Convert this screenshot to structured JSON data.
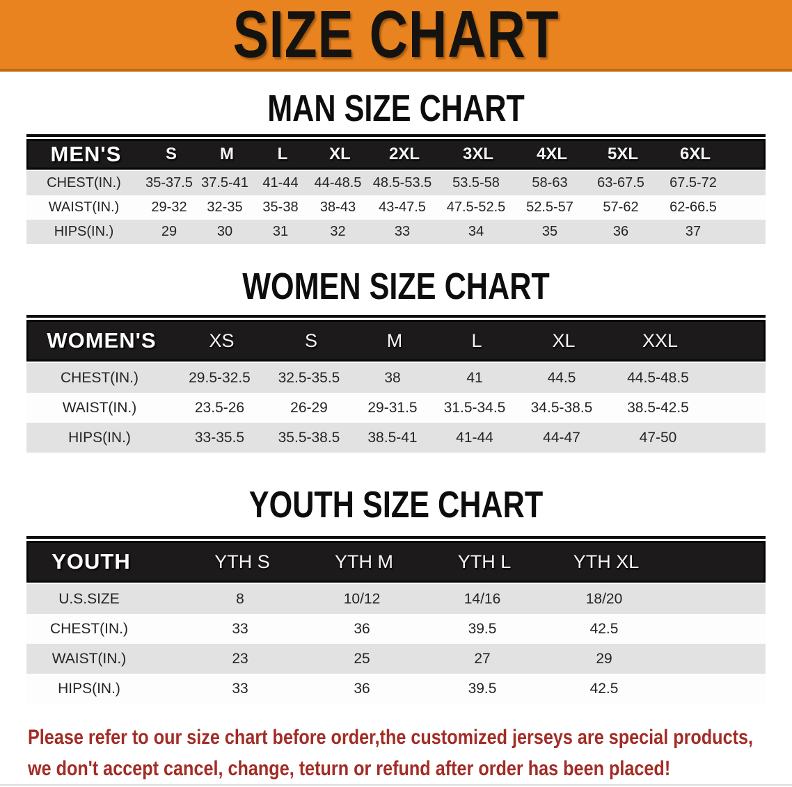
{
  "banner": {
    "title": "SIZE CHART"
  },
  "chart_data": [
    {
      "type": "table",
      "title": "MAN SIZE CHART",
      "header": [
        "MEN'S",
        "S",
        "M",
        "L",
        "XL",
        "2XL",
        "3XL",
        "4XL",
        "5XL",
        "6XL"
      ],
      "rows": [
        {
          "label": "CHEST(IN.)",
          "values": [
            "35-37.5",
            "37.5-41",
            "41-44",
            "44-48.5",
            "48.5-53.5",
            "53.5-58",
            "58-63",
            "63-67.5",
            "67.5-72"
          ]
        },
        {
          "label": "WAIST(IN.)",
          "values": [
            "29-32",
            "32-35",
            "35-38",
            "38-43",
            "43-47.5",
            "47.5-52.5",
            "52.5-57",
            "57-62",
            "62-66.5"
          ]
        },
        {
          "label": "HIPS(IN.)",
          "values": [
            "29",
            "30",
            "31",
            "32",
            "33",
            "34",
            "35",
            "36",
            "37"
          ]
        }
      ]
    },
    {
      "type": "table",
      "title": "WOMEN SIZE CHART",
      "header": [
        "WOMEN'S",
        "XS",
        "S",
        "M",
        "L",
        "XL",
        "XXL"
      ],
      "rows": [
        {
          "label": "CHEST(IN.)",
          "values": [
            "29.5-32.5",
            "32.5-35.5",
            "38",
            "41",
            "44.5",
            "44.5-48.5"
          ]
        },
        {
          "label": "WAIST(IN.)",
          "values": [
            "23.5-26",
            "26-29",
            "29-31.5",
            "31.5-34.5",
            "34.5-38.5",
            "38.5-42.5"
          ]
        },
        {
          "label": "HIPS(IN.)",
          "values": [
            "33-35.5",
            "35.5-38.5",
            "38.5-41",
            "41-44",
            "44-47",
            "47-50"
          ]
        }
      ]
    },
    {
      "type": "table",
      "title": "YOUTH SIZE CHART",
      "header": [
        "YOUTH",
        "YTH S",
        "YTH M",
        "YTH L",
        "YTH XL"
      ],
      "rows": [
        {
          "label": "U.S.SIZE",
          "values": [
            "8",
            "10/12",
            "14/16",
            "18/20"
          ]
        },
        {
          "label": "CHEST(IN.)",
          "values": [
            "33",
            "36",
            "39.5",
            "42.5"
          ]
        },
        {
          "label": "WAIST(IN.)",
          "values": [
            "23",
            "25",
            "27",
            "29"
          ]
        },
        {
          "label": "HIPS(IN.)",
          "values": [
            "33",
            "36",
            "39.5",
            "42.5"
          ]
        }
      ]
    }
  ],
  "disclaimer": {
    "line1": "Please refer to our size chart before order,the customized jerseys are special products,",
    "line2": "we don't accept cancel, change, teturn or refund after order has been placed!"
  },
  "colors": {
    "banner_orange": "#E8831F",
    "banner_edge": "#C0690F",
    "table_header_bg": "#1C1A1A",
    "row_gray": "#E2E2E2",
    "row_white": "#FDFDFD",
    "disclaimer_red": "#A32C26",
    "title_black": "#0D0D0D"
  }
}
